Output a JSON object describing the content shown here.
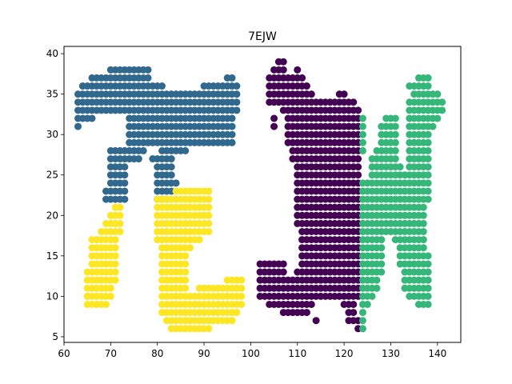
{
  "chart_data": {
    "type": "scatter",
    "title": "7EJW",
    "xlabel": "",
    "ylabel": "",
    "xlim": [
      60,
      145
    ],
    "ylim": [
      4.3,
      40.9
    ],
    "xticks": [
      60,
      70,
      80,
      90,
      100,
      110,
      120,
      130,
      140
    ],
    "yticks": [
      5,
      10,
      15,
      20,
      25,
      30,
      35,
      40
    ],
    "grid": false,
    "legend": "none",
    "colors": [
      "#31688e",
      "#fde725",
      "#440154",
      "#35b779"
    ],
    "series": [
      {
        "color": "#31688e",
        "rows": [
          [
            38,
            70,
            78
          ],
          [
            37,
            66,
            78
          ],
          [
            37,
            95,
            96
          ],
          [
            36,
            64,
            81
          ],
          [
            36,
            90,
            93
          ],
          [
            36,
            94,
            97
          ],
          [
            35,
            63,
            97
          ],
          [
            34,
            63,
            97
          ],
          [
            33,
            63,
            97
          ],
          [
            32,
            63,
            66
          ],
          [
            32,
            74,
            96
          ],
          [
            31,
            63,
            63
          ],
          [
            31,
            74,
            96
          ],
          [
            30,
            74,
            96
          ],
          [
            29,
            74,
            96
          ],
          [
            28,
            70,
            77
          ],
          [
            28,
            81,
            86
          ],
          [
            27,
            70,
            76
          ],
          [
            27,
            79,
            83
          ],
          [
            26,
            70,
            73
          ],
          [
            26,
            80,
            83
          ],
          [
            25,
            70,
            73
          ],
          [
            25,
            80,
            83
          ],
          [
            24,
            70,
            73
          ],
          [
            24,
            80,
            84
          ],
          [
            23,
            69,
            73
          ],
          [
            23,
            80,
            83
          ],
          [
            22,
            69,
            73
          ],
          [
            22,
            80,
            82
          ]
        ]
      },
      {
        "color": "#fde725",
        "rows": [
          [
            23,
            84,
            91
          ],
          [
            22,
            80,
            91
          ],
          [
            21,
            71,
            72
          ],
          [
            21,
            80,
            91
          ],
          [
            20,
            70,
            72
          ],
          [
            20,
            80,
            91
          ],
          [
            19,
            69,
            72
          ],
          [
            19,
            80,
            91
          ],
          [
            18,
            68,
            72
          ],
          [
            18,
            80,
            91
          ],
          [
            17,
            66,
            71
          ],
          [
            17,
            80,
            89
          ],
          [
            16,
            66,
            71
          ],
          [
            16,
            81,
            87
          ],
          [
            15,
            66,
            71
          ],
          [
            15,
            81,
            86
          ],
          [
            14,
            66,
            71
          ],
          [
            14,
            81,
            86
          ],
          [
            13,
            65,
            71
          ],
          [
            13,
            81,
            86
          ],
          [
            12,
            65,
            71
          ],
          [
            12,
            81,
            86
          ],
          [
            12,
            95,
            98
          ],
          [
            11,
            65,
            70
          ],
          [
            11,
            81,
            86
          ],
          [
            11,
            89,
            98
          ],
          [
            10,
            65,
            70
          ],
          [
            10,
            81,
            98
          ],
          [
            9,
            65,
            69
          ],
          [
            9,
            81,
            98
          ],
          [
            8,
            81,
            97
          ],
          [
            7,
            82,
            96
          ],
          [
            6,
            83,
            91
          ]
        ]
      },
      {
        "color": "#440154",
        "rows": [
          [
            39,
            106,
            107
          ],
          [
            38,
            105,
            107
          ],
          [
            38,
            110,
            110
          ],
          [
            37,
            104,
            111
          ],
          [
            36,
            104,
            112
          ],
          [
            35,
            104,
            113
          ],
          [
            35,
            119,
            120
          ],
          [
            34,
            104,
            122
          ],
          [
            33,
            107,
            123
          ],
          [
            32,
            105,
            105
          ],
          [
            32,
            108,
            123
          ],
          [
            31,
            105,
            105
          ],
          [
            31,
            108,
            123
          ],
          [
            30,
            108,
            123
          ],
          [
            29,
            108,
            123
          ],
          [
            28,
            109,
            123
          ],
          [
            27,
            109,
            123
          ],
          [
            26,
            110,
            123
          ],
          [
            25,
            110,
            123
          ],
          [
            24,
            110,
            123
          ],
          [
            23,
            110,
            123
          ],
          [
            22,
            110,
            123
          ],
          [
            21,
            110,
            123
          ],
          [
            20,
            110,
            123
          ],
          [
            19,
            110,
            123
          ],
          [
            18,
            111,
            123
          ],
          [
            17,
            111,
            123
          ],
          [
            16,
            111,
            123
          ],
          [
            15,
            111,
            123
          ],
          [
            14,
            102,
            107
          ],
          [
            14,
            111,
            123
          ],
          [
            13,
            102,
            107
          ],
          [
            13,
            110,
            123
          ],
          [
            12,
            102,
            123
          ],
          [
            11,
            102,
            123
          ],
          [
            10,
            102,
            123
          ],
          [
            9,
            104,
            113
          ],
          [
            9,
            120,
            122
          ],
          [
            8,
            107,
            112
          ],
          [
            8,
            121,
            122
          ],
          [
            7,
            114,
            114
          ],
          [
            7,
            121,
            123
          ],
          [
            6,
            123,
            123
          ]
        ]
      },
      {
        "color": "#35b779",
        "rows": [
          [
            37,
            136,
            138
          ],
          [
            36,
            134,
            138
          ],
          [
            35,
            135,
            140
          ],
          [
            34,
            134,
            141
          ],
          [
            33,
            134,
            141
          ],
          [
            32,
            124,
            124
          ],
          [
            32,
            129,
            131
          ],
          [
            32,
            134,
            140
          ],
          [
            31,
            124,
            124
          ],
          [
            31,
            128,
            131
          ],
          [
            31,
            134,
            139
          ],
          [
            30,
            124,
            124
          ],
          [
            30,
            128,
            131
          ],
          [
            30,
            134,
            138
          ],
          [
            29,
            124,
            124
          ],
          [
            29,
            128,
            131
          ],
          [
            29,
            134,
            138
          ],
          [
            28,
            124,
            124
          ],
          [
            28,
            127,
            131
          ],
          [
            28,
            134,
            138
          ],
          [
            27,
            126,
            131
          ],
          [
            27,
            134,
            138
          ],
          [
            26,
            126,
            132
          ],
          [
            26,
            134,
            138
          ],
          [
            25,
            126,
            138
          ],
          [
            24,
            124,
            138
          ],
          [
            23,
            124,
            138
          ],
          [
            22,
            124,
            138
          ],
          [
            21,
            124,
            137
          ],
          [
            20,
            124,
            137
          ],
          [
            19,
            124,
            137
          ],
          [
            18,
            124,
            137
          ],
          [
            17,
            124,
            128
          ],
          [
            17,
            131,
            137
          ],
          [
            16,
            124,
            128
          ],
          [
            16,
            132,
            137
          ],
          [
            15,
            124,
            128
          ],
          [
            15,
            132,
            138
          ],
          [
            14,
            124,
            128
          ],
          [
            14,
            132,
            138
          ],
          [
            13,
            124,
            128
          ],
          [
            13,
            133,
            138
          ],
          [
            12,
            124,
            127
          ],
          [
            12,
            133,
            138
          ],
          [
            11,
            124,
            127
          ],
          [
            11,
            133,
            138
          ],
          [
            10,
            124,
            126
          ],
          [
            10,
            134,
            138
          ],
          [
            9,
            124,
            125
          ],
          [
            9,
            136,
            138
          ],
          [
            8,
            124,
            124
          ],
          [
            7,
            124,
            124
          ],
          [
            6,
            124,
            124
          ]
        ]
      }
    ]
  }
}
